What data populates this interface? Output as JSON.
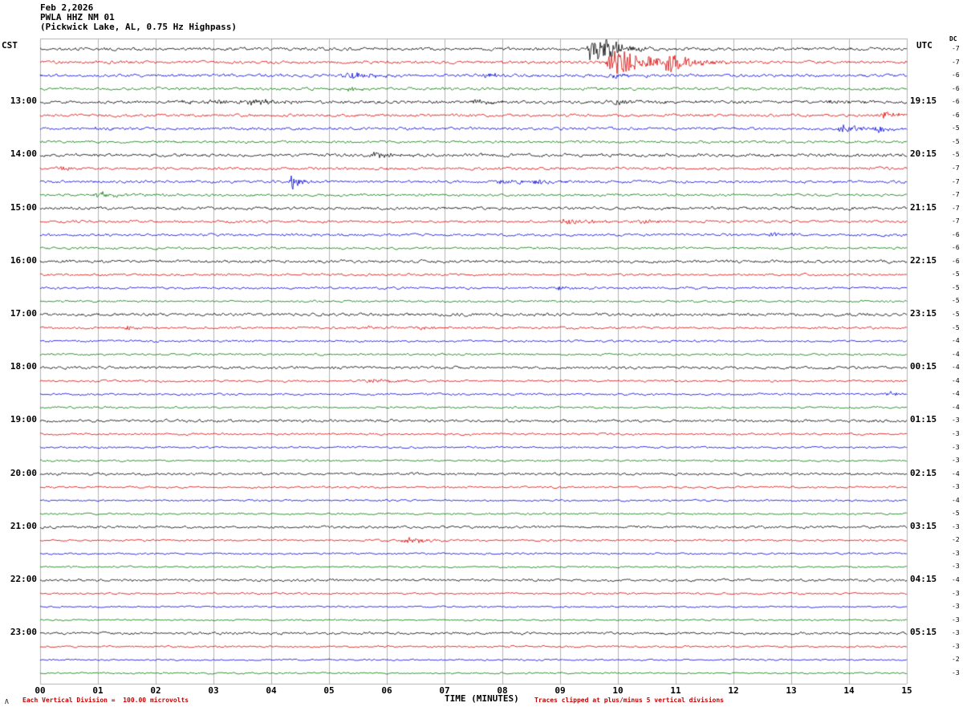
{
  "header": {
    "date": "Feb 2,2026",
    "station": "PWLA HHZ NM 01",
    "description": "(Pickwick Lake, AL, 0.75 Hz Highpass)",
    "left_tz": "CST",
    "right_tz": "UTC",
    "dc_label": "DC"
  },
  "footer": {
    "xaxis_title": "TIME (MINUTES)",
    "scale_note": "Each Vertical Division =  100.00 microvolts",
    "clip_note": "Traces clipped at plus/minus 5 vertical divisions",
    "mark": "Λ"
  },
  "chart_data": {
    "type": "line",
    "title": "PWLA HHZ NM 01 (Pickwick Lake, AL, 0.75 Hz Highpass)",
    "xlabel": "TIME (MINUTES)",
    "x_range": [
      0,
      15
    ],
    "minutes_per_line": 15,
    "lines_per_hour": 4,
    "clip_divisions": 5,
    "volts_per_division": "100.00 microvolts",
    "grid": true,
    "grid_color": "#b2b2b2",
    "x_ticks": [
      "00",
      "01",
      "02",
      "03",
      "04",
      "05",
      "06",
      "07",
      "08",
      "09",
      "10",
      "11",
      "12",
      "13",
      "14",
      "15"
    ],
    "colors": {
      "black": "#000000",
      "red": "#dd0000",
      "blue": "#0000dd",
      "green": "#007700"
    },
    "row_color_cycle": [
      "black",
      "red",
      "blue",
      "green"
    ],
    "rows": [
      {
        "color": "black",
        "left": null,
        "right": null,
        "dc": -7,
        "noise": 1.5,
        "events": [
          {
            "m": 9.55,
            "amp": 26,
            "dur": 0.3
          },
          {
            "m": 9.85,
            "amp": 8,
            "dur": 0.6
          }
        ]
      },
      {
        "color": "red",
        "left": null,
        "right": null,
        "dc": -7,
        "noise": 1.4,
        "events": [
          {
            "m": 10.0,
            "amp": 17,
            "dur": 1.0
          },
          {
            "m": 10.9,
            "amp": 7,
            "dur": 0.7
          }
        ]
      },
      {
        "color": "blue",
        "left": null,
        "right": null,
        "dc": -6,
        "noise": 1.4,
        "events": [
          {
            "m": 5.35,
            "amp": 5,
            "dur": 0.6
          },
          {
            "m": 7.7,
            "amp": 3,
            "dur": 0.4
          },
          {
            "m": 9.9,
            "amp": 3,
            "dur": 0.9
          }
        ]
      },
      {
        "color": "green",
        "left": null,
        "right": null,
        "dc": -6,
        "noise": 1.3,
        "events": [
          {
            "m": 5.3,
            "amp": 3,
            "dur": 0.5
          }
        ]
      },
      {
        "color": "black",
        "left": "13:00",
        "right": "19:15",
        "dc": -6,
        "noise": 1.5,
        "events": [
          {
            "m": 2.6,
            "amp": 2.5,
            "dur": 1.2
          },
          {
            "m": 3.7,
            "amp": 3,
            "dur": 0.8
          },
          {
            "m": 7.6,
            "amp": 2.5,
            "dur": 0.9
          },
          {
            "m": 10.0,
            "amp": 3.5,
            "dur": 0.8
          },
          {
            "m": 13.7,
            "amp": 2,
            "dur": 0.5
          }
        ]
      },
      {
        "color": "red",
        "left": null,
        "right": null,
        "dc": -6,
        "noise": 1.3,
        "events": [
          {
            "m": 14.6,
            "amp": 3,
            "dur": 0.6
          }
        ]
      },
      {
        "color": "blue",
        "left": null,
        "right": null,
        "dc": -5,
        "noise": 1.3,
        "events": [
          {
            "m": 1.0,
            "amp": 2.5,
            "dur": 0.5
          },
          {
            "m": 13.9,
            "amp": 5,
            "dur": 0.6
          },
          {
            "m": 14.5,
            "amp": 3.5,
            "dur": 0.4
          }
        ]
      },
      {
        "color": "green",
        "left": null,
        "right": null,
        "dc": -5,
        "noise": 1.2,
        "events": []
      },
      {
        "color": "black",
        "left": "14:00",
        "right": "20:15",
        "dc": -5,
        "noise": 1.5,
        "events": [
          {
            "m": 5.8,
            "amp": 3,
            "dur": 0.8
          }
        ]
      },
      {
        "color": "red",
        "left": null,
        "right": null,
        "dc": -7,
        "noise": 1.3,
        "events": [
          {
            "m": 0.35,
            "amp": 4,
            "dur": 0.25
          }
        ]
      },
      {
        "color": "blue",
        "left": null,
        "right": null,
        "dc": -7,
        "noise": 1.3,
        "events": [
          {
            "m": 4.35,
            "amp": 9,
            "dur": 0.3
          },
          {
            "m": 8.0,
            "amp": 3.5,
            "dur": 0.5
          },
          {
            "m": 8.6,
            "amp": 2.5,
            "dur": 0.4
          }
        ]
      },
      {
        "color": "green",
        "left": null,
        "right": null,
        "dc": -7,
        "noise": 1.2,
        "events": [
          {
            "m": 1.0,
            "amp": 3.5,
            "dur": 0.6
          }
        ]
      },
      {
        "color": "black",
        "left": "15:00",
        "right": "21:15",
        "dc": -7,
        "noise": 1.4,
        "events": []
      },
      {
        "color": "red",
        "left": null,
        "right": null,
        "dc": -7,
        "noise": 1.2,
        "events": [
          {
            "m": 9.1,
            "amp": 3.5,
            "dur": 0.7
          },
          {
            "m": 10.4,
            "amp": 3,
            "dur": 0.5
          }
        ]
      },
      {
        "color": "blue",
        "left": null,
        "right": null,
        "dc": -6,
        "noise": 1.2,
        "events": [
          {
            "m": 12.7,
            "amp": 3.5,
            "dur": 0.5
          }
        ]
      },
      {
        "color": "green",
        "left": null,
        "right": null,
        "dc": -6,
        "noise": 1.1,
        "events": []
      },
      {
        "color": "black",
        "left": "16:00",
        "right": "22:15",
        "dc": -6,
        "noise": 1.4,
        "events": []
      },
      {
        "color": "red",
        "left": null,
        "right": null,
        "dc": -5,
        "noise": 1.1,
        "events": []
      },
      {
        "color": "blue",
        "left": null,
        "right": null,
        "dc": -5,
        "noise": 1.1,
        "events": [
          {
            "m": 9.0,
            "amp": 3,
            "dur": 0.3
          }
        ]
      },
      {
        "color": "green",
        "left": null,
        "right": null,
        "dc": -5,
        "noise": 1.0,
        "events": []
      },
      {
        "color": "black",
        "left": "17:00",
        "right": "23:15",
        "dc": -5,
        "noise": 1.4,
        "events": []
      },
      {
        "color": "red",
        "left": null,
        "right": null,
        "dc": -5,
        "noise": 1.1,
        "events": [
          {
            "m": 1.5,
            "amp": 2.5,
            "dur": 0.3
          },
          {
            "m": 5.7,
            "amp": 2,
            "dur": 0.3
          },
          {
            "m": 6.6,
            "amp": 2,
            "dur": 0.3
          }
        ]
      },
      {
        "color": "blue",
        "left": null,
        "right": null,
        "dc": -4,
        "noise": 1.0,
        "events": []
      },
      {
        "color": "green",
        "left": null,
        "right": null,
        "dc": -4,
        "noise": 1.0,
        "events": []
      },
      {
        "color": "black",
        "left": "18:00",
        "right": "00:15",
        "dc": -4,
        "noise": 1.3,
        "events": []
      },
      {
        "color": "red",
        "left": null,
        "right": null,
        "dc": -4,
        "noise": 1.0,
        "events": [
          {
            "m": 5.8,
            "amp": 2.5,
            "dur": 0.9
          }
        ]
      },
      {
        "color": "blue",
        "left": null,
        "right": null,
        "dc": -4,
        "noise": 1.0,
        "events": [
          {
            "m": 14.7,
            "amp": 3,
            "dur": 0.25
          }
        ]
      },
      {
        "color": "green",
        "left": null,
        "right": null,
        "dc": -4,
        "noise": 0.9,
        "events": []
      },
      {
        "color": "black",
        "left": "19:00",
        "right": "01:15",
        "dc": -3,
        "noise": 1.3,
        "events": []
      },
      {
        "color": "red",
        "left": null,
        "right": null,
        "dc": -3,
        "noise": 1.0,
        "events": []
      },
      {
        "color": "blue",
        "left": null,
        "right": null,
        "dc": -3,
        "noise": 0.9,
        "events": []
      },
      {
        "color": "green",
        "left": null,
        "right": null,
        "dc": -3,
        "noise": 0.9,
        "events": []
      },
      {
        "color": "black",
        "left": "20:00",
        "right": "02:15",
        "dc": -4,
        "noise": 1.2,
        "events": []
      },
      {
        "color": "red",
        "left": null,
        "right": null,
        "dc": -3,
        "noise": 0.9,
        "events": []
      },
      {
        "color": "blue",
        "left": null,
        "right": null,
        "dc": -4,
        "noise": 0.9,
        "events": []
      },
      {
        "color": "green",
        "left": null,
        "right": null,
        "dc": -5,
        "noise": 0.9,
        "events": []
      },
      {
        "color": "black",
        "left": "21:00",
        "right": "03:15",
        "dc": -3,
        "noise": 1.2,
        "events": []
      },
      {
        "color": "red",
        "left": null,
        "right": null,
        "dc": -2,
        "noise": 0.9,
        "events": [
          {
            "m": 6.4,
            "amp": 3.5,
            "dur": 0.8
          }
        ]
      },
      {
        "color": "blue",
        "left": null,
        "right": null,
        "dc": -3,
        "noise": 0.9,
        "events": []
      },
      {
        "color": "green",
        "left": null,
        "right": null,
        "dc": -3,
        "noise": 0.8,
        "events": []
      },
      {
        "color": "black",
        "left": "22:00",
        "right": "04:15",
        "dc": -4,
        "noise": 1.2,
        "events": []
      },
      {
        "color": "red",
        "left": null,
        "right": null,
        "dc": -3,
        "noise": 0.9,
        "events": []
      },
      {
        "color": "blue",
        "left": null,
        "right": null,
        "dc": -3,
        "noise": 0.8,
        "events": []
      },
      {
        "color": "green",
        "left": null,
        "right": null,
        "dc": -3,
        "noise": 0.8,
        "events": []
      },
      {
        "color": "black",
        "left": "23:00",
        "right": "05:15",
        "dc": -3,
        "noise": 1.2,
        "events": []
      },
      {
        "color": "red",
        "left": null,
        "right": null,
        "dc": -3,
        "noise": 0.9,
        "events": []
      },
      {
        "color": "blue",
        "left": null,
        "right": null,
        "dc": -2,
        "noise": 0.8,
        "events": []
      },
      {
        "color": "green",
        "left": null,
        "right": null,
        "dc": -3,
        "noise": 0.8,
        "events": []
      }
    ]
  }
}
